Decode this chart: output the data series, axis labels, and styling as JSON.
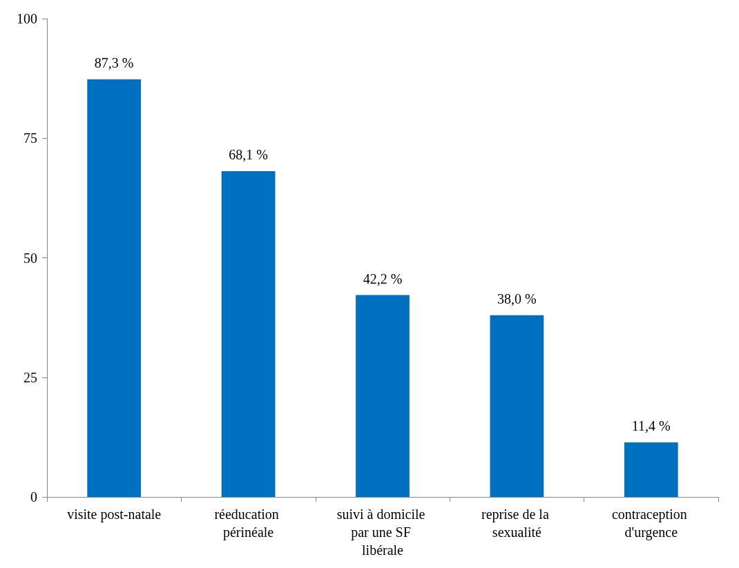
{
  "chart_data": {
    "type": "bar",
    "categories": [
      "visite post-natale",
      "réeducation périnéale",
      "suivi à domicile par une SF libérale",
      "reprise de la sexualité",
      "contraception d'urgence"
    ],
    "values": [
      87.3,
      68.1,
      42.2,
      38.0,
      11.4
    ],
    "value_labels": [
      "87,3 %",
      "68,1 %",
      "42,2 %",
      "38,0 %",
      "11,4 %"
    ],
    "color": "#0070c0",
    "ylim": [
      0,
      100
    ],
    "yticks": [
      0,
      25,
      50,
      75,
      100
    ],
    "grid": false
  }
}
